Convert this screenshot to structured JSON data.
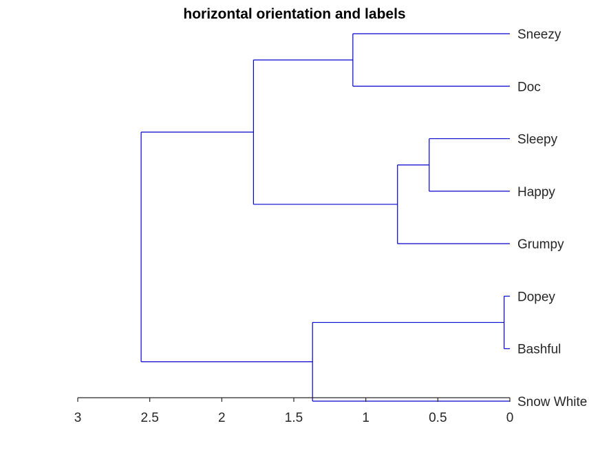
{
  "chart_data": {
    "type": "dendrogram",
    "title": "horizontal orientation and labels",
    "orientation": "horizontal",
    "x_axis": {
      "ticks": [
        3,
        2.5,
        2,
        1.5,
        1,
        0.5,
        0
      ],
      "tick_labels": [
        "3",
        "2.5",
        "2",
        "1.5",
        "1",
        "0.5",
        "0"
      ],
      "xlim": [
        3,
        0
      ],
      "reversed": true
    },
    "leaves": [
      "Sneezy",
      "Doc",
      "Sleepy",
      "Happy",
      "Grumpy",
      "Dopey",
      "Bashful",
      "Snow White"
    ],
    "merges": [
      {
        "id": "m1",
        "children": [
          "Sneezy",
          "Doc"
        ],
        "height": 1.09
      },
      {
        "id": "m2",
        "children": [
          "Sleepy",
          "Happy"
        ],
        "height": 0.56
      },
      {
        "id": "m3",
        "children": [
          "m2",
          "Grumpy"
        ],
        "height": 0.78
      },
      {
        "id": "m4",
        "children": [
          "m1",
          "m3"
        ],
        "height": 1.78
      },
      {
        "id": "m5",
        "children": [
          "Dopey",
          "Bashful"
        ],
        "height": 0.04
      },
      {
        "id": "m6",
        "children": [
          "m5",
          "Snow White"
        ],
        "height": 1.37
      },
      {
        "id": "m7",
        "children": [
          "m4",
          "m6"
        ],
        "height": 2.56
      }
    ],
    "line_color": "#0000cc",
    "grid": false
  }
}
